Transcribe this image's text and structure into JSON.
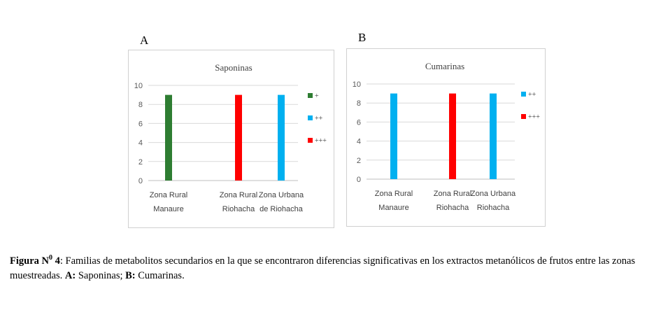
{
  "panels": [
    {
      "letter": "A"
    },
    {
      "letter": "B"
    }
  ],
  "chart_data": [
    {
      "type": "bar",
      "title": "Saponinas",
      "categories": [
        [
          "Zona Rural",
          "Manaure"
        ],
        [
          "Zona Rural",
          "Riohacha"
        ],
        [
          "Zona Urbana",
          "de Riohacha"
        ]
      ],
      "series": [
        {
          "name": "+",
          "color": "#2e7d32",
          "values": [
            9,
            null,
            null
          ]
        },
        {
          "name": "++",
          "color": "#00b0f0",
          "values": [
            null,
            null,
            9
          ]
        },
        {
          "name": "+++",
          "color": "#ff0000",
          "values": [
            null,
            9,
            null
          ]
        }
      ],
      "ylim": [
        0,
        10
      ],
      "yticks": [
        "0",
        "2",
        "4",
        "6",
        "8",
        "10"
      ],
      "grid": true,
      "legend": "right"
    },
    {
      "type": "bar",
      "title": "Cumarinas",
      "categories": [
        [
          "Zona Rural",
          "Manaure"
        ],
        [
          "Zona Rural",
          "Riohacha"
        ],
        [
          "Zona Urbana",
          "Riohacha"
        ]
      ],
      "series": [
        {
          "name": "++",
          "color": "#00b0f0",
          "values": [
            9,
            null,
            9
          ]
        },
        {
          "name": "+++",
          "color": "#ff0000",
          "values": [
            null,
            9,
            null
          ]
        }
      ],
      "ylim": [
        0,
        10
      ],
      "yticks": [
        "0",
        "2",
        "4",
        "6",
        "8",
        "10"
      ],
      "grid": true,
      "legend": "right"
    }
  ],
  "caption": {
    "label": "Figura N",
    "label_sup": "0",
    "label_num": " 4",
    "text1": ": Familias de metabolitos secundarios en la que se encontraron diferencias significativas en los extractos metanólicos de frutos entre las zonas muestreadas. ",
    "a_label": "A:",
    "a_text": " Saponinas; ",
    "b_label": "B:",
    "b_text": " Cumarinas."
  }
}
